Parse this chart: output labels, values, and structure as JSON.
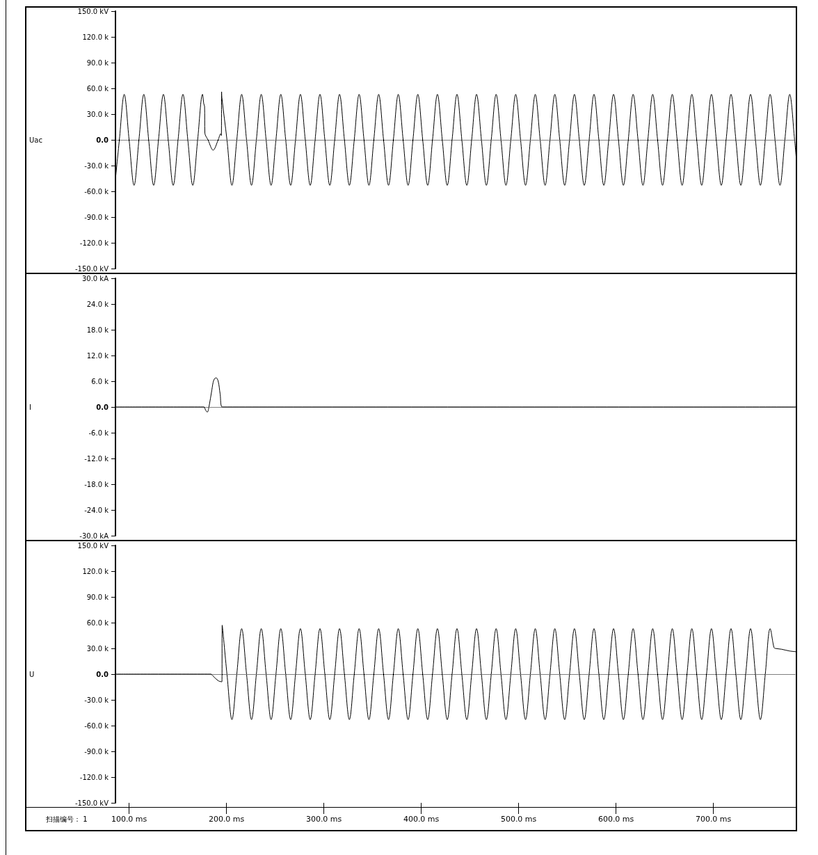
{
  "chart_data": [
    {
      "type": "line",
      "ylabel": "Uac",
      "color": "#000000",
      "marker": "none",
      "line_style": "solid",
      "grid": false,
      "tick_labels": "y",
      "xlim": [
        86,
        786
      ],
      "ylim": [
        -150,
        150
      ],
      "yticks": [
        {
          "value": 150,
          "label": "150.0 kV"
        },
        {
          "value": 120,
          "label": "120.0 k"
        },
        {
          "value": 90,
          "label": "90.0 k"
        },
        {
          "value": 60,
          "label": "60.0 k"
        },
        {
          "value": 30,
          "label": "30.0 k"
        },
        {
          "value": 0,
          "label": "0.0"
        },
        {
          "value": -30,
          "label": "-30.0 k"
        },
        {
          "value": -60,
          "label": "-60.0 k"
        },
        {
          "value": -90,
          "label": "-90.0 k"
        },
        {
          "value": -120,
          "label": "-120.0 k"
        },
        {
          "value": -150,
          "label": "-150.0 kV"
        }
      ],
      "ref_lines": [
        {
          "axis": "y",
          "value": 0,
          "line_style": "dotted",
          "color": "#000000"
        }
      ],
      "x": [
        86,
        90.0,
        95.0,
        100.0,
        105.1,
        110.1,
        115.1,
        120.1,
        125.2,
        130.2,
        135.2,
        140.2,
        145.3,
        150.3,
        155.3,
        160.3,
        165.4,
        170.4,
        175.4,
        176.7,
        177.5,
        177.8,
        181.0,
        186.3,
        191.5,
        194.0,
        194.7,
        195.0,
        195.3,
        200.5,
        205.6,
        210.6,
        215.6,
        220.6,
        225.7,
        230.7,
        235.7,
        240.7,
        245.8,
        250.8,
        255.8,
        260.8,
        265.9,
        270.9,
        275.9,
        280.9,
        286.0,
        291.0,
        296.0,
        301.0,
        306.1,
        311.1,
        316.1,
        321.1,
        326.2,
        331.2,
        336.2,
        341.2,
        346.3,
        351.3,
        356.3,
        361.3,
        366.4,
        371.4,
        376.4,
        381.4,
        386.5,
        391.5,
        396.5,
        401.5,
        406.6,
        411.6,
        416.6,
        421.6,
        426.7,
        431.7,
        436.7,
        441.7,
        446.8,
        451.8,
        456.8,
        461.8,
        466.9,
        471.9,
        476.9,
        481.9,
        487.0,
        492.0,
        497.0,
        502.0,
        507.1,
        512.1,
        517.1,
        522.1,
        527.2,
        532.2,
        537.2,
        542.2,
        547.3,
        552.3,
        557.3,
        562.3,
        567.4,
        572.4,
        577.4,
        582.4,
        587.5,
        592.5,
        597.5,
        602.5,
        607.6,
        612.6,
        617.6,
        622.6,
        627.7,
        632.7,
        637.7,
        642.7,
        647.8,
        652.8,
        657.8,
        662.8,
        667.9,
        672.9,
        677.9,
        682.9,
        688.0,
        693.0,
        698.0,
        703.0,
        708.1,
        713.1,
        718.1,
        723.1,
        728.2,
        733.2,
        738.2,
        743.2,
        748.3,
        753.3,
        758.3,
        763.3,
        768.4,
        773.4,
        778.4,
        783.4,
        785.7
      ],
      "values": [
        -46,
        0,
        53,
        0,
        -53,
        0,
        53,
        0,
        -53,
        0,
        53,
        0,
        -53,
        0,
        53,
        0,
        -53,
        0,
        53,
        42,
        39,
        8,
        0,
        -12,
        0,
        7,
        5,
        56,
        49,
        0,
        -53,
        0,
        53,
        0,
        -53,
        0,
        53,
        0,
        -53,
        0,
        53,
        0,
        -53,
        0,
        53,
        0,
        -53,
        0,
        53,
        0,
        -53,
        0,
        53,
        0,
        -53,
        0,
        53,
        0,
        -53,
        0,
        53,
        0,
        -53,
        0,
        53,
        0,
        -53,
        0,
        53,
        0,
        -53,
        0,
        53,
        0,
        -53,
        0,
        53,
        0,
        -53,
        0,
        53,
        0,
        -53,
        0,
        53,
        0,
        -53,
        0,
        53,
        0,
        -53,
        0,
        53,
        0,
        -53,
        0,
        53,
        0,
        -53,
        0,
        53,
        0,
        -53,
        0,
        53,
        0,
        -53,
        0,
        53,
        0,
        -53,
        0,
        53,
        0,
        -53,
        0,
        53,
        0,
        -53,
        0,
        53,
        0,
        -53,
        0,
        53,
        0,
        -53,
        0,
        53,
        0,
        -53,
        0,
        53,
        0,
        -53,
        0,
        53,
        0,
        -53,
        0,
        53,
        0,
        -53,
        0,
        53,
        0,
        -30
      ]
    },
    {
      "type": "line",
      "ylabel": "I",
      "color": "#000000",
      "marker": "none",
      "line_style": "solid",
      "grid": false,
      "tick_labels": "y",
      "xlim": [
        86,
        786
      ],
      "ylim": [
        -30,
        30
      ],
      "yticks": [
        {
          "value": 30,
          "label": "30.0 kA"
        },
        {
          "value": 24,
          "label": "24.0 k"
        },
        {
          "value": 18,
          "label": "18.0 k"
        },
        {
          "value": 12,
          "label": "12.0 k"
        },
        {
          "value": 6,
          "label": "6.0 k"
        },
        {
          "value": 0,
          "label": "0.0"
        },
        {
          "value": -6,
          "label": "-6.0 k"
        },
        {
          "value": -12,
          "label": "-12.0 k"
        },
        {
          "value": -18,
          "label": "-18.0 k"
        },
        {
          "value": -24,
          "label": "-24.0 k"
        },
        {
          "value": -30,
          "label": "-30.0 kA"
        }
      ],
      "ref_lines": [
        {
          "axis": "y",
          "value": 0,
          "line_style": "dotted",
          "color": "#000000"
        }
      ],
      "x": [
        86,
        176.7,
        178.5,
        180.3,
        182.0,
        185.0,
        187.0,
        189.4,
        191.5,
        193.5,
        195.8,
        786
      ],
      "values": [
        0,
        0,
        -0.7,
        -1.2,
        0,
        4,
        6.3,
        6.8,
        6,
        3,
        0,
        0
      ]
    },
    {
      "type": "line",
      "ylabel": "U",
      "color": "#000000",
      "marker": "none",
      "line_style": "solid",
      "grid": false,
      "xlim": [
        86,
        786
      ],
      "ylim": [
        -150,
        150
      ],
      "xticks": [
        {
          "value": 100,
          "label": "100.0 ms"
        },
        {
          "value": 200,
          "label": "200.0 ms"
        },
        {
          "value": 300,
          "label": "300.0 ms"
        },
        {
          "value": 400,
          "label": "400.0 ms"
        },
        {
          "value": 500,
          "label": "500.0 ms"
        },
        {
          "value": 600,
          "label": "600.0 ms"
        },
        {
          "value": 700,
          "label": "700.0 ms"
        }
      ],
      "yticks": [
        {
          "value": 150,
          "label": "150.0 kV"
        },
        {
          "value": 120,
          "label": "120.0 k"
        },
        {
          "value": 90,
          "label": "90.0 k"
        },
        {
          "value": 60,
          "label": "60.0 k"
        },
        {
          "value": 30,
          "label": "30.0 k"
        },
        {
          "value": 0,
          "label": "0.0"
        },
        {
          "value": -30,
          "label": "-30.0 k"
        },
        {
          "value": -60,
          "label": "-60.0 k"
        },
        {
          "value": -90,
          "label": "-90.0 k"
        },
        {
          "value": -120,
          "label": "-120.0 k"
        },
        {
          "value": -150,
          "label": "-150.0 kV"
        }
      ],
      "ref_lines": [
        {
          "axis": "y",
          "value": 0,
          "line_style": "dotted",
          "color": "#000000"
        }
      ],
      "annotations": [
        "扫描编号： 1"
      ],
      "x": [
        86,
        183.9,
        186.0,
        188.7,
        192.0,
        195.3,
        195.6,
        200.5,
        205.6,
        210.6,
        215.6,
        220.6,
        225.7,
        230.7,
        235.7,
        240.7,
        245.8,
        250.8,
        255.8,
        260.8,
        265.9,
        270.9,
        275.9,
        280.9,
        286.0,
        291.0,
        296.0,
        301.0,
        306.1,
        311.1,
        316.1,
        321.1,
        326.2,
        331.2,
        336.2,
        341.2,
        346.3,
        351.3,
        356.3,
        361.3,
        366.4,
        371.4,
        376.4,
        381.4,
        386.5,
        391.5,
        396.5,
        401.5,
        406.6,
        411.6,
        416.6,
        421.6,
        426.7,
        431.7,
        436.7,
        441.7,
        446.8,
        451.8,
        456.8,
        461.8,
        466.9,
        471.9,
        476.9,
        481.9,
        487.0,
        492.0,
        497.0,
        502.0,
        507.1,
        512.1,
        517.1,
        522.1,
        527.2,
        532.2,
        537.2,
        542.2,
        547.3,
        552.3,
        557.3,
        562.3,
        567.4,
        572.4,
        577.4,
        582.4,
        587.5,
        592.5,
        597.5,
        602.5,
        607.6,
        612.6,
        617.6,
        622.6,
        627.7,
        632.7,
        637.7,
        642.7,
        647.8,
        652.8,
        657.8,
        662.8,
        667.9,
        672.9,
        677.9,
        682.9,
        688.0,
        693.0,
        698.0,
        703.0,
        708.1,
        713.1,
        718.1,
        723.1,
        728.2,
        733.2,
        738.2,
        743.2,
        748.3,
        753.3,
        758.3,
        762.2,
        763.5,
        770.0,
        778.0,
        785.7
      ],
      "values": [
        0,
        0,
        -2,
        -5,
        -8,
        -9,
        57,
        0,
        -53,
        0,
        53,
        0,
        -53,
        0,
        53,
        0,
        -53,
        0,
        53,
        0,
        -53,
        0,
        53,
        0,
        -53,
        0,
        53,
        0,
        -53,
        0,
        53,
        0,
        -53,
        0,
        53,
        0,
        -53,
        0,
        53,
        0,
        -53,
        0,
        53,
        0,
        -53,
        0,
        53,
        0,
        -53,
        0,
        53,
        0,
        -53,
        0,
        53,
        0,
        -53,
        0,
        53,
        0,
        -53,
        0,
        53,
        0,
        -53,
        0,
        53,
        0,
        -53,
        0,
        53,
        0,
        -53,
        0,
        53,
        0,
        -53,
        0,
        53,
        0,
        -53,
        0,
        53,
        0,
        -53,
        0,
        53,
        0,
        -53,
        0,
        53,
        0,
        -53,
        0,
        53,
        0,
        -53,
        0,
        53,
        0,
        -53,
        0,
        53,
        0,
        -53,
        0,
        53,
        0,
        -53,
        0,
        53,
        0,
        -53,
        0,
        53,
        0,
        -53,
        0,
        53,
        31,
        30,
        29,
        27,
        26
      ]
    }
  ]
}
